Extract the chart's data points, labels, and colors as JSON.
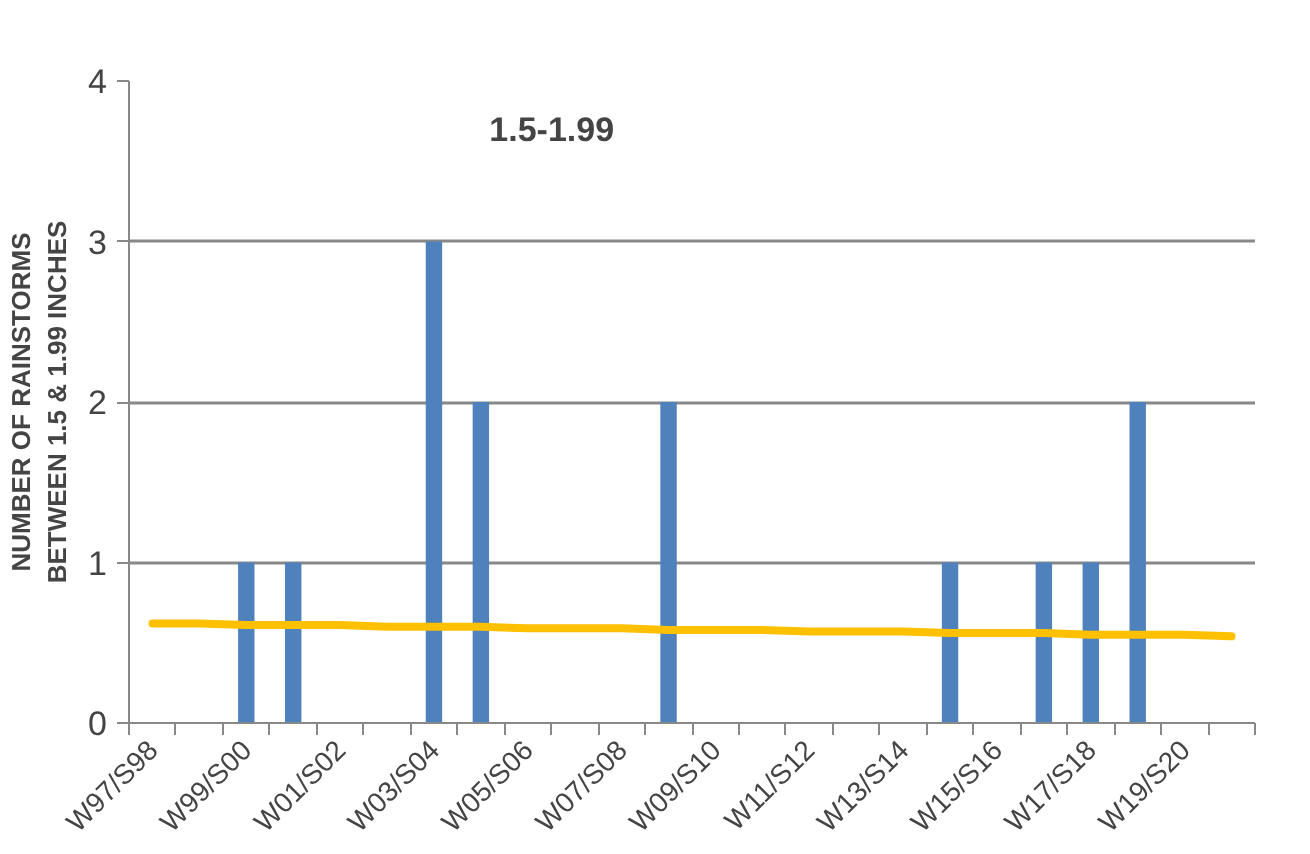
{
  "chart_data": {
    "type": "bar",
    "title": "1.5-1.99",
    "ylabel": "NUMBER OF RAINSTORMS\nBETWEEN 1.5 & 1.99 INCHES",
    "categories": [
      "W97/S98",
      null,
      "W99/S00",
      null,
      "W01/S02",
      null,
      "W03/S04",
      null,
      "W05/S06",
      null,
      "W07/S08",
      null,
      "W09/S10",
      null,
      "W11/S12",
      null,
      "W13/S14",
      null,
      "W15/S16",
      null,
      "W17/S18",
      null,
      "W19/S20",
      null
    ],
    "series": [
      {
        "color": "#4f81bd",
        "values": [
          0,
          0,
          1,
          1,
          0,
          0,
          3,
          2,
          0,
          0,
          0,
          2,
          0,
          0,
          0,
          0,
          0,
          1,
          0,
          1,
          1,
          2,
          0,
          0
        ]
      },
      {
        "type": "line",
        "color": "#ffc000",
        "values": [
          0.62,
          0.62,
          0.61,
          0.61,
          0.61,
          0.6,
          0.6,
          0.6,
          0.59,
          0.59,
          0.59,
          0.58,
          0.58,
          0.58,
          0.57,
          0.57,
          0.57,
          0.56,
          0.56,
          0.56,
          0.55,
          0.55,
          0.55,
          0.54
        ]
      }
    ],
    "ylim": [
      0,
      4
    ],
    "yticks": [
      0,
      1,
      2,
      3,
      4
    ],
    "grid": "y"
  }
}
